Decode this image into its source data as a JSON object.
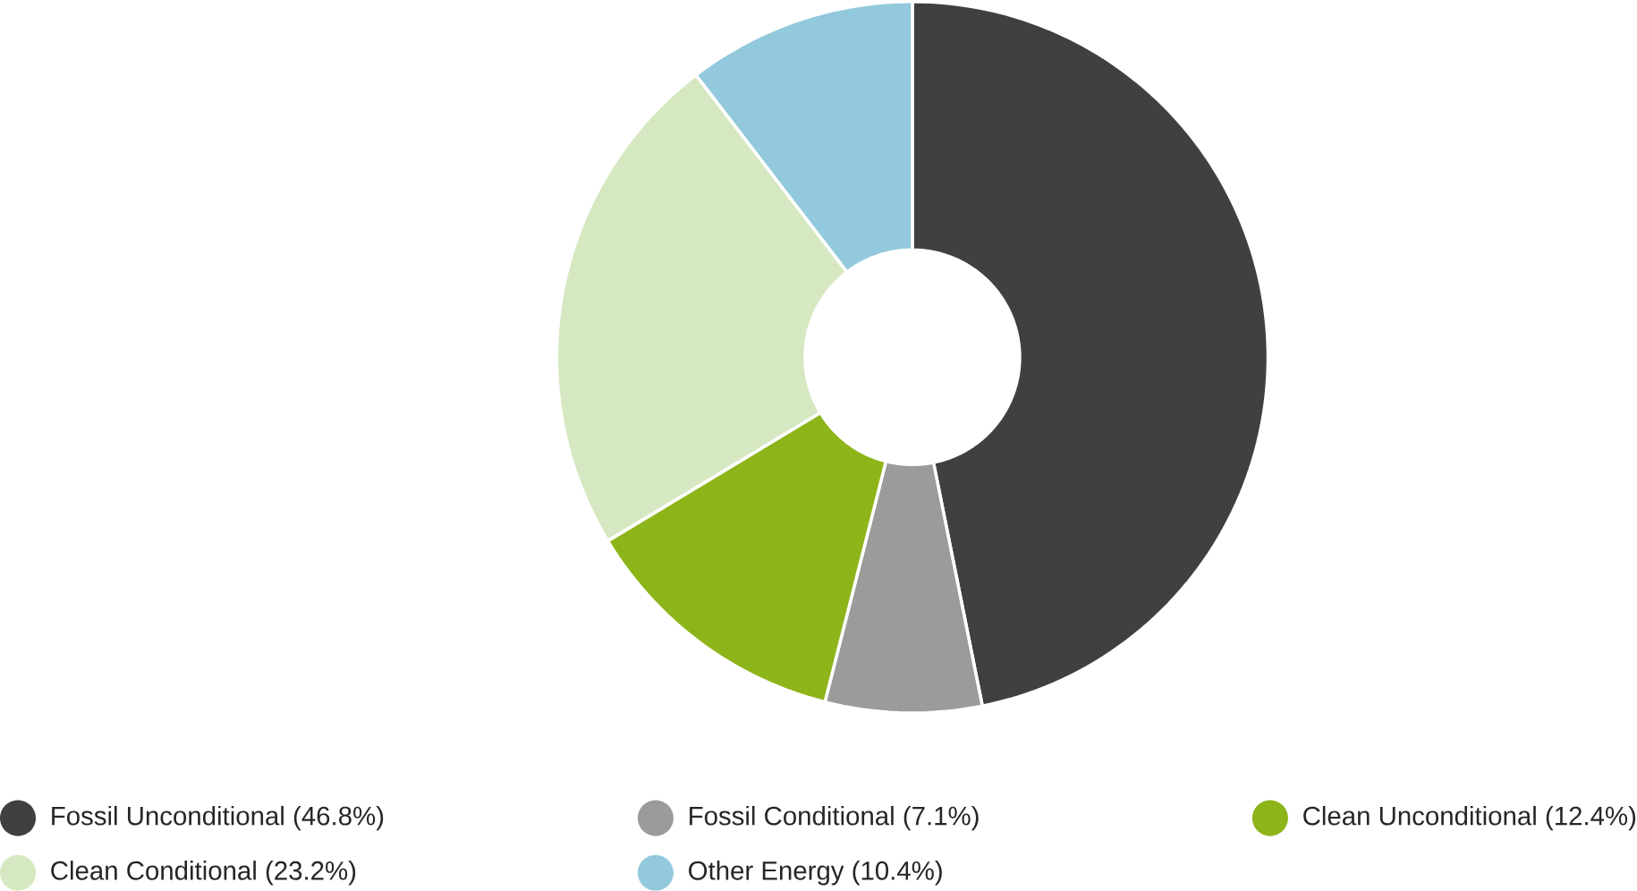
{
  "chart_data": {
    "type": "donut",
    "categories": [
      "Fossil Unconditional (46.8%)",
      "Fossil Conditional (7.1%)",
      "Clean Unconditional (12.4%)",
      "Clean Conditional (23.2%)",
      "Other Energy (10.4%)"
    ],
    "values": [
      46.8,
      7.1,
      12.4,
      23.2,
      10.4
    ],
    "colors": [
      "#404040",
      "#9b9b9b",
      "#8db51a",
      "#d6e8c1",
      "#92c9dc"
    ],
    "legend": "bottom"
  }
}
